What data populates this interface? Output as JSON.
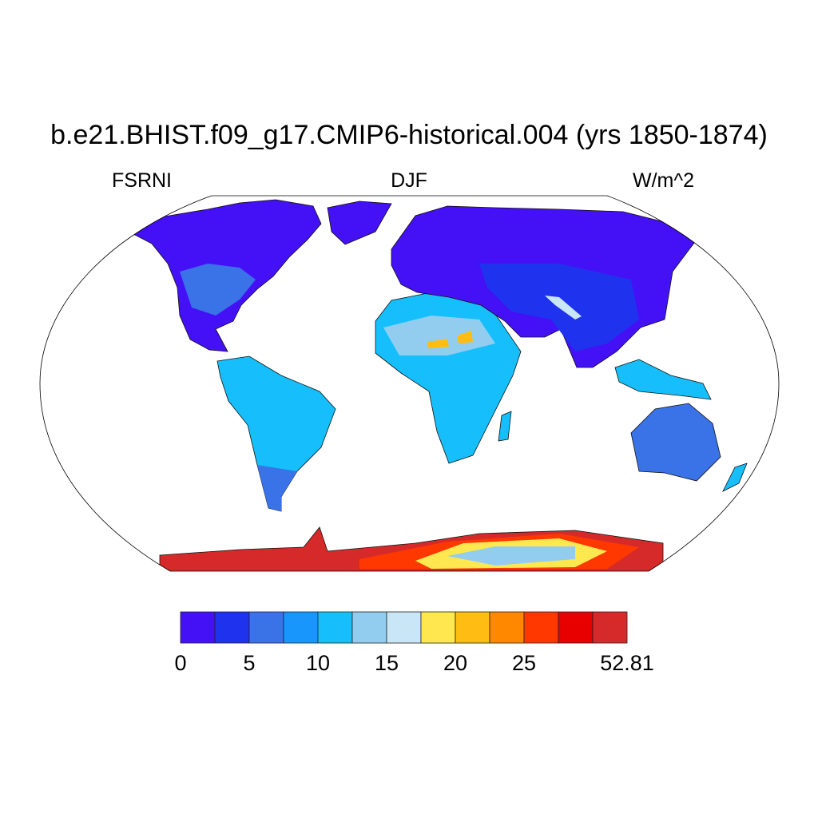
{
  "title": "b.e21.BHIST.f09_g17.CMIP6-historical.004 (yrs 1850-1874)",
  "left_subtitle": "FSRNI",
  "center_subtitle": "DJF",
  "right_subtitle": "W/m^2",
  "projection": "Robinson",
  "colorbar": {
    "levels": [
      0,
      2.5,
      5,
      7.5,
      10,
      12.5,
      15,
      17.5,
      20,
      22.5,
      25,
      27.5,
      30,
      52.81
    ],
    "colors": [
      "#4410f5",
      "#1f33ee",
      "#3a72e8",
      "#1996fb",
      "#16bffb",
      "#92cdf0",
      "#c9e6f7",
      "#ffe84f",
      "#ffbd13",
      "#ff8800",
      "#ff3800",
      "#e80000",
      "#d62a2a"
    ],
    "labels": [
      {
        "text": "0",
        "level_index": 0
      },
      {
        "text": "5",
        "level_index": 2
      },
      {
        "text": "10",
        "level_index": 4
      },
      {
        "text": "15",
        "level_index": 6
      },
      {
        "text": "20",
        "level_index": 8
      },
      {
        "text": "25",
        "level_index": 10
      },
      {
        "text": "52.81",
        "level_index": 13
      }
    ]
  }
}
